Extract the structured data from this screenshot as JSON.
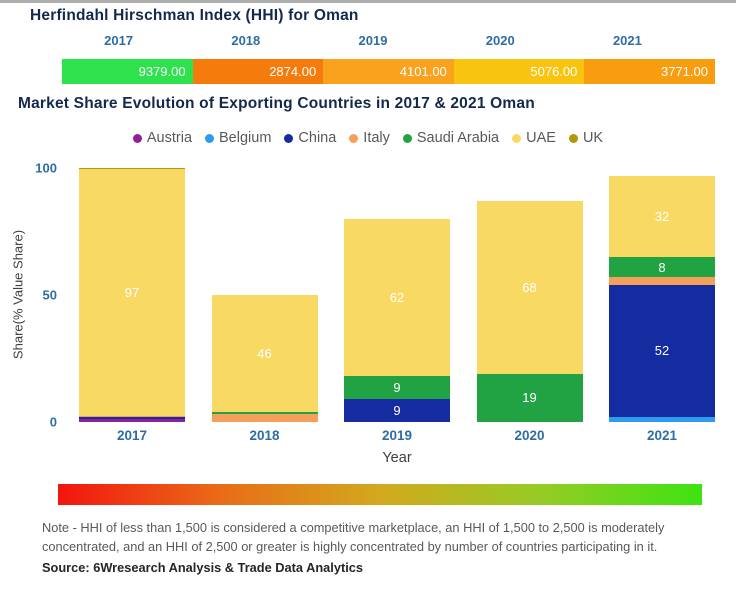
{
  "hhi": {
    "title": "Herfindahl Hirschman Index (HHI) for Oman",
    "years": [
      "2017",
      "2018",
      "2019",
      "2020",
      "2021"
    ],
    "values": [
      "9379.00",
      "2874.00",
      "4101.00",
      "5076.00",
      "3771.00"
    ],
    "segment_colors": [
      "#2ee24e",
      "#f57c0c",
      "#faa11e",
      "#f8c410",
      "#f99d10"
    ]
  },
  "market": {
    "title": "Market Share Evolution of Exporting Countries in 2017 & 2021 Oman",
    "ylabel": "Share(% Value Share)",
    "xlabel": "Year",
    "yticks": [
      {
        "label": "100",
        "value": 100
      },
      {
        "label": "50",
        "value": 50
      },
      {
        "label": "0",
        "value": 0
      }
    ]
  },
  "chart_data": {
    "type": "bar",
    "stacked": true,
    "title": "Market Share Evolution of Exporting Countries in 2017 & 2021 Oman",
    "xlabel": "Year",
    "ylabel": "Share(% Value Share)",
    "ylim": [
      0,
      100
    ],
    "grid": false,
    "legend_position": "top",
    "label_min": 8,
    "categories": [
      "2017",
      "2018",
      "2019",
      "2020",
      "2021"
    ],
    "series": [
      {
        "name": "Austria",
        "color": "#911f9b",
        "values": [
          1,
          0,
          0,
          0,
          0
        ]
      },
      {
        "name": "Belgium",
        "color": "#2d9cf0",
        "values": [
          0,
          0,
          0,
          0,
          2
        ]
      },
      {
        "name": "China",
        "color": "#152ba0",
        "values": [
          1,
          0,
          9,
          0,
          52
        ]
      },
      {
        "name": "Italy",
        "color": "#f5a05a",
        "values": [
          0.5,
          3,
          0,
          0,
          3
        ]
      },
      {
        "name": "Saudi Arabia",
        "color": "#21a343",
        "values": [
          0,
          1,
          9,
          19,
          8
        ]
      },
      {
        "name": "UAE",
        "color": "#f8d964",
        "values": [
          97,
          46,
          62,
          68,
          32
        ]
      },
      {
        "name": "UK",
        "color": "#b5950a",
        "values": [
          0.5,
          0,
          0,
          0,
          0
        ]
      }
    ]
  },
  "gradient_legend": {
    "left_color": "#f2150e",
    "right_color": "#3ee311",
    "direction": "red-to-green"
  },
  "note": "Note - HHI of less than 1,500 is considered a competitive marketplace, an HHI of 1,500 to 2,500 is moderately concentrated, and an HHI of 2,500 or greater is highly concentrated by number of countries participating in it.",
  "source": "Source: 6Wresearch Analysis & Trade Data Analytics",
  "colors": {
    "title_text": "#13294b",
    "axis_tick_text": "#2e6da4",
    "axis_label_text": "#404040",
    "legend_text": "#595959",
    "note_text": "#595959",
    "bar_label_text": "#ffffff"
  }
}
